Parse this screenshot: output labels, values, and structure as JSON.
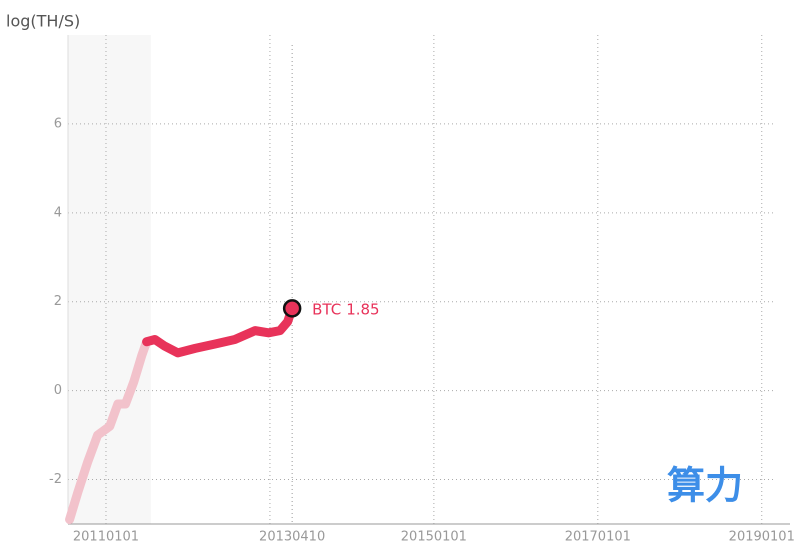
{
  "chart_data": {
    "type": "line",
    "y_label": "log(TH/S)",
    "xlim": [
      "20100716",
      "20190301"
    ],
    "xticks": [
      "20110101",
      "20150101",
      "20170101",
      "20190101"
    ],
    "extra_xgrid": [
      "20130101"
    ],
    "ylim": [
      -3,
      8
    ],
    "yticks": [
      6,
      4,
      2,
      0,
      -2
    ],
    "grid": true,
    "shaded_range": [
      "20100716",
      "20110720"
    ],
    "cursor": "20130410",
    "series": [
      {
        "color": "#f2c2cb",
        "x": [
          "20100723",
          "20100828",
          "20101012",
          "20101125",
          "20110118",
          "20110223",
          "20110329",
          "20110505",
          "20110610",
          "20110701"
        ],
        "values": [
          -2.9,
          -2.3,
          -1.6,
          -1.0,
          -0.8,
          -0.3,
          -0.3,
          0.2,
          0.8,
          1.1
        ]
      },
      {
        "name": "BTC",
        "color": "#e8335a",
        "x": [
          "20110701",
          "20110807",
          "20110920",
          "20111117",
          "20120202",
          "20120501",
          "20120728",
          "20121026",
          "20121225",
          "20130215",
          "20130321",
          "20130410"
        ],
        "values": [
          1.1,
          1.15,
          1.0,
          0.85,
          0.95,
          1.05,
          1.15,
          1.35,
          1.3,
          1.35,
          1.55,
          1.85
        ]
      }
    ],
    "watermark": "算力"
  }
}
